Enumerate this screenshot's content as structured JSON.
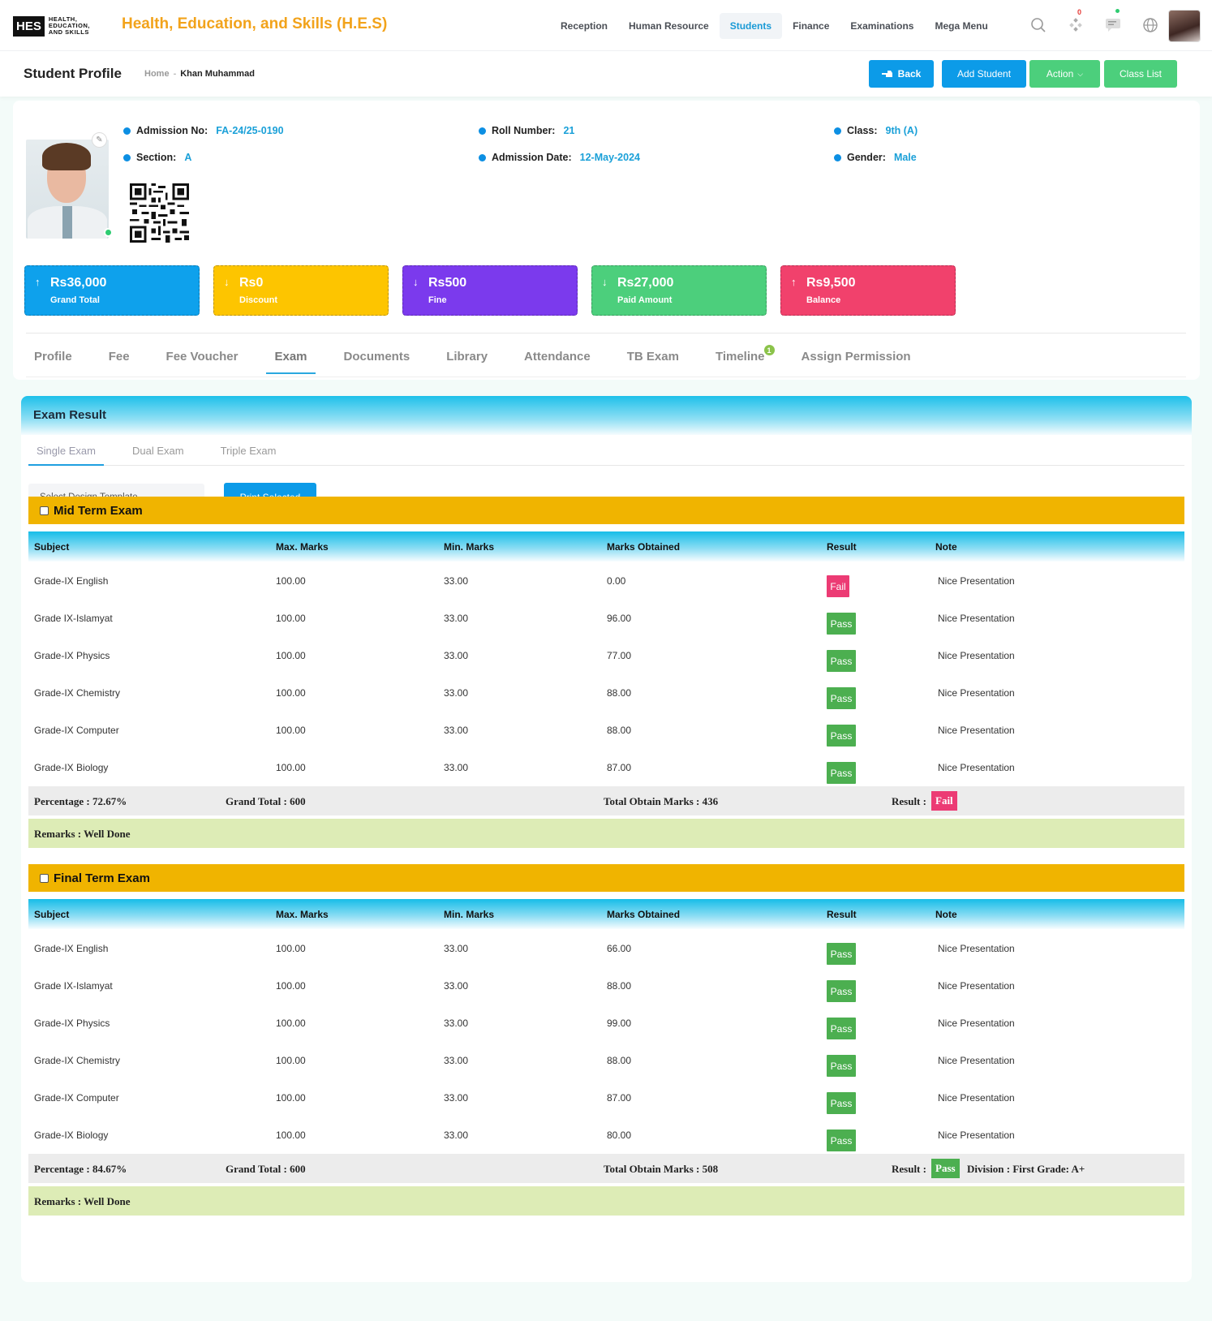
{
  "header": {
    "logo_mark": "HES",
    "logo_text": [
      "HEALTH,",
      "EDUCATION,",
      "AND SKILLS"
    ],
    "app_title": "Health, Education, and Skills (H.E.S)",
    "nav": [
      "Reception",
      "Human Resource",
      "Students",
      "Finance",
      "Examinations",
      "Mega Menu"
    ],
    "active_nav": "Students",
    "notification_count": "0"
  },
  "subheader": {
    "title": "Student Profile",
    "breadcrumb_home": "Home",
    "breadcrumb_sep": "-",
    "breadcrumb_current": "Khan Muhammad",
    "back_label": "Back",
    "add_student_label": "Add Student",
    "action_label": "Action",
    "class_list_label": "Class List"
  },
  "profile": {
    "admission_no_label": "Admission No:",
    "admission_no": "FA-24/25-0190",
    "roll_label": "Roll Number:",
    "roll": "21",
    "class_label": "Class:",
    "class": "9th (A)",
    "section_label": "Section:",
    "section": "A",
    "admission_date_label": "Admission Date:",
    "admission_date": "12-May-2024",
    "gender_label": "Gender:",
    "gender": "Male"
  },
  "stats": [
    {
      "amount": "Rs36,000",
      "label": "Grand Total",
      "arrow": "↑",
      "color": "#0ea1ec"
    },
    {
      "amount": "Rs0",
      "label": "Discount",
      "arrow": "↓",
      "color": "#fdc500"
    },
    {
      "amount": "Rs500",
      "label": "Fine",
      "arrow": "↓",
      "color": "#7b3aed"
    },
    {
      "amount": "Rs27,000",
      "label": "Paid Amount",
      "arrow": "↓",
      "color": "#4ccf7c"
    },
    {
      "amount": "Rs9,500",
      "label": "Balance",
      "arrow": "↑",
      "color": "#f1416c"
    }
  ],
  "tabs": [
    "Profile",
    "Fee",
    "Fee Voucher",
    "Exam",
    "Documents",
    "Library",
    "Attendance",
    "TB Exam",
    "Timeline",
    "Assign Permission"
  ],
  "active_tab": "Exam",
  "timeline_badge": "1",
  "exam": {
    "title": "Exam Result",
    "subtabs": [
      "Single Exam",
      "Dual Exam",
      "Triple Exam"
    ],
    "active_subtab": "Single Exam",
    "template_placeholder": "Select Design Template",
    "print_label": "Print Selected",
    "columns": [
      "Subject",
      "Max. Marks",
      "Min. Marks",
      "Marks Obtained",
      "Result",
      "Note"
    ],
    "colors": {
      "pass": "#4caf50",
      "fail": "#ec3b74",
      "section": "#f0b400"
    },
    "sections": [
      {
        "name": "Mid Term Exam",
        "rows": [
          {
            "subject": "Grade-IX English",
            "max": "100.00",
            "min": "33.00",
            "obtained": "0.00",
            "result": "Fail",
            "note": "Nice Presentation"
          },
          {
            "subject": "Grade IX-Islamyat",
            "max": "100.00",
            "min": "33.00",
            "obtained": "96.00",
            "result": "Pass",
            "note": "Nice Presentation"
          },
          {
            "subject": "Grade-IX Physics",
            "max": "100.00",
            "min": "33.00",
            "obtained": "77.00",
            "result": "Pass",
            "note": "Nice Presentation"
          },
          {
            "subject": "Grade-IX Chemistry",
            "max": "100.00",
            "min": "33.00",
            "obtained": "88.00",
            "result": "Pass",
            "note": "Nice Presentation"
          },
          {
            "subject": "Grade-IX Computer",
            "max": "100.00",
            "min": "33.00",
            "obtained": "88.00",
            "result": "Pass",
            "note": "Nice Presentation"
          },
          {
            "subject": "Grade-IX Biology",
            "max": "100.00",
            "min": "33.00",
            "obtained": "87.00",
            "result": "Pass",
            "note": "Nice Presentation"
          }
        ],
        "percentage": "Percentage : 72.67%",
        "grand_total": "Grand Total : 600",
        "total_obtain": "Total Obtain Marks : 436",
        "result_label": "Result :",
        "result": "Fail",
        "division": "",
        "remarks": "Remarks : Well Done"
      },
      {
        "name": "Final Term Exam",
        "rows": [
          {
            "subject": "Grade-IX English",
            "max": "100.00",
            "min": "33.00",
            "obtained": "66.00",
            "result": "Pass",
            "note": "Nice Presentation"
          },
          {
            "subject": "Grade IX-Islamyat",
            "max": "100.00",
            "min": "33.00",
            "obtained": "88.00",
            "result": "Pass",
            "note": "Nice Presentation"
          },
          {
            "subject": "Grade-IX Physics",
            "max": "100.00",
            "min": "33.00",
            "obtained": "99.00",
            "result": "Pass",
            "note": "Nice Presentation"
          },
          {
            "subject": "Grade-IX Chemistry",
            "max": "100.00",
            "min": "33.00",
            "obtained": "88.00",
            "result": "Pass",
            "note": "Nice Presentation"
          },
          {
            "subject": "Grade-IX Computer",
            "max": "100.00",
            "min": "33.00",
            "obtained": "87.00",
            "result": "Pass",
            "note": "Nice Presentation"
          },
          {
            "subject": "Grade-IX Biology",
            "max": "100.00",
            "min": "33.00",
            "obtained": "80.00",
            "result": "Pass",
            "note": "Nice Presentation"
          }
        ],
        "percentage": "Percentage : 84.67%",
        "grand_total": "Grand Total : 600",
        "total_obtain": "Total Obtain Marks : 508",
        "result_label": "Result :",
        "result": "Pass",
        "division": "Division : First Grade:  A+",
        "remarks": "Remarks : Well Done"
      }
    ]
  }
}
